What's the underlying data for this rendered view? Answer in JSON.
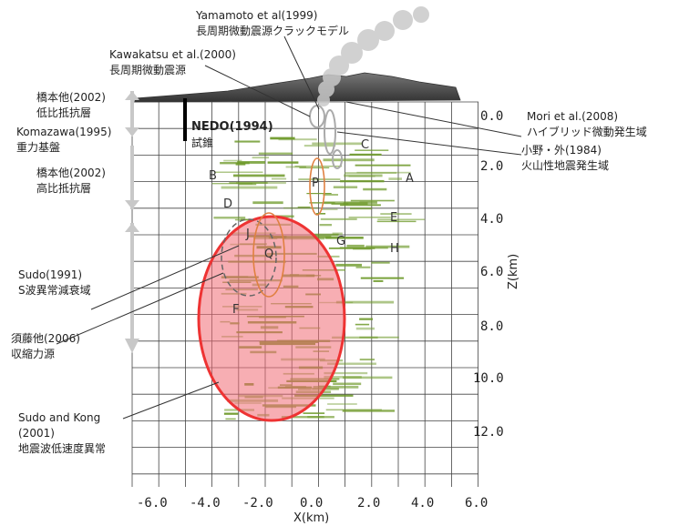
{
  "diagram": {
    "x_ticks": [
      "-6.0",
      "-4.0",
      "-2.0",
      "0.0",
      "2.0",
      "4.0",
      "6.0"
    ],
    "z_ticks": [
      "0.0",
      "2.0",
      "4.0",
      "6.0",
      "8.0",
      "10.0",
      "12.0"
    ],
    "x_axis_title": "X(km)",
    "z_axis_title": "Z(km)",
    "point_letters": [
      "A",
      "B",
      "C",
      "D",
      "E",
      "F",
      "G",
      "H",
      "J",
      "P",
      "Q"
    ],
    "annotations": {
      "yamamoto_1": "Yamamoto et al(1999)",
      "yamamoto_2": "長周期微動震源クラックモデル",
      "kawakatsu_1": "Kawakatsu et al.(2000)",
      "kawakatsu_2": "長周期微動震源",
      "hashimoto_low_1": "橋本他(2002)",
      "hashimoto_low_2": "低比抵抗層",
      "komazawa_1": "Komazawa(1995)",
      "komazawa_2": "重力基盤",
      "nedo_1": "NEDO(1994)",
      "nedo_2": "試錐",
      "hashimoto_high_1": "橋本他(2002)",
      "hashimoto_high_2": "高比抵抗層",
      "mori_1": "Mori et al.(2008)",
      "mori_2": "ハイブリッド微動発生域",
      "ono_1": "小野・外(1984)",
      "ono_2": "火山性地震発生域",
      "sudo1991_1": "Sudo(1991)",
      "sudo1991_2": "S波異常減衰域",
      "sudo2006_1": "須藤他(2006)",
      "sudo2006_2": "収縮力源",
      "sudokong_1": "Sudo and Kong",
      "sudokong_2": "(2001)",
      "sudokong_3": "地震波低速度異常"
    },
    "colors": {
      "red_anomaly": "#f0606a",
      "green_seismicity": "#5f8f1f",
      "orange_outline": "#e0904a",
      "grid": "#333333",
      "topography": "#555555"
    }
  }
}
